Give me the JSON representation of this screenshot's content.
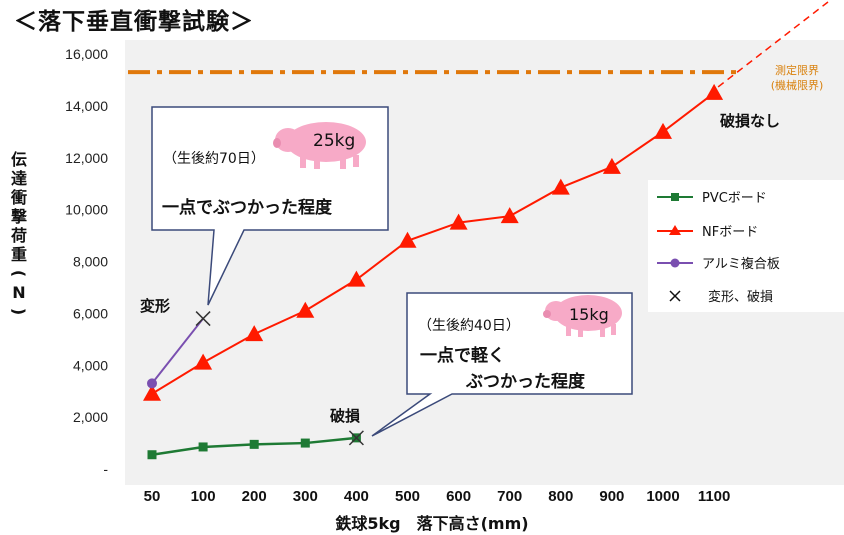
{
  "title": "＜落下垂直衝撃試験＞",
  "colors": {
    "pvc": "#1e7a34",
    "nf": "#ff1a00",
    "alumi": "#7a4fb0",
    "limit": "#e0780b",
    "plot_bg": "#f1f1f1",
    "pig": "#f7aac7"
  },
  "chart_data": {
    "type": "line",
    "xlabel": "鉄球5kg　落下高さ(mm)",
    "ylabel": "伝達衝撃荷重(N)",
    "ylim": [
      0,
      16000
    ],
    "x_ticks": [
      "50",
      "100",
      "200",
      "300",
      "400",
      "500",
      "600",
      "700",
      "800",
      "900",
      "1000",
      "1100"
    ],
    "y_ticks": [
      "-",
      "2,000",
      "4,000",
      "6,000",
      "8,000",
      "10,000",
      "12,000",
      "14,000",
      "16,000"
    ],
    "y_tick_values": [
      0,
      2000,
      4000,
      6000,
      8000,
      10000,
      12000,
      14000,
      16000
    ],
    "grid": false,
    "legend_position": "right",
    "series": [
      {
        "name": "PVCボード",
        "marker": "square",
        "x": [
          "50",
          "100",
          "200",
          "300",
          "400"
        ],
        "values": [
          550,
          850,
          950,
          1000,
          1200
        ]
      },
      {
        "name": "NFボード",
        "marker": "triangle",
        "x": [
          "50",
          "100",
          "200",
          "300",
          "400",
          "500",
          "600",
          "700",
          "800",
          "900",
          "1000",
          "1100"
        ],
        "values": [
          2900,
          4100,
          5200,
          6100,
          7300,
          8800,
          9500,
          9750,
          10850,
          11650,
          13000,
          14500
        ]
      },
      {
        "name": "アルミ複合板",
        "marker": "circle",
        "x": [
          "50",
          "100"
        ],
        "values": [
          3300,
          5800
        ]
      }
    ],
    "legend_extra": "変形、破損",
    "limit_line": {
      "value": 15300,
      "label_line1": "測定限界",
      "label_line2": "(機械限界)"
    },
    "annotations": {
      "nf_end": "破損なし",
      "alumi_end": "変形",
      "pvc_end": "破損"
    }
  },
  "callouts": [
    {
      "age": "（生後約70日）",
      "weight": "25kg",
      "text_lines": [
        "一点でぶつかった程度"
      ]
    },
    {
      "age": "（生後約40日）",
      "weight": "15kg",
      "text_lines": [
        "一点で軽く",
        "ぶつかった程度"
      ]
    }
  ]
}
